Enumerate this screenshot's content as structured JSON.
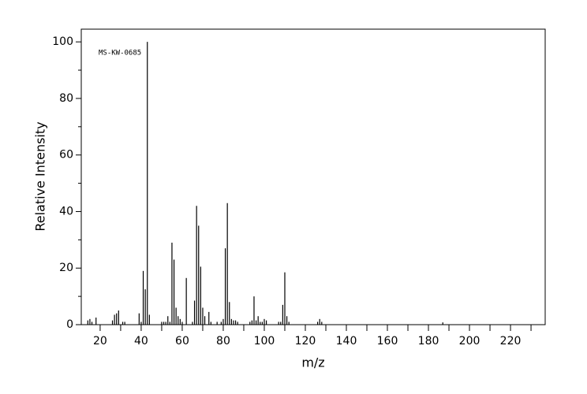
{
  "chart_data": {
    "type": "stick",
    "annotation": "MS-KW-0685",
    "xlabel": "m/z",
    "ylabel": "Relative Intensity",
    "x": [
      14,
      15,
      16,
      18,
      26,
      27,
      28,
      29,
      31,
      32,
      39,
      40,
      41,
      42,
      43,
      44,
      50,
      51,
      52,
      53,
      54,
      55,
      56,
      57,
      58,
      59,
      60,
      62,
      65,
      66,
      67,
      68,
      69,
      70,
      71,
      73,
      74,
      77,
      79,
      80,
      81,
      82,
      83,
      84,
      85,
      86,
      87,
      93,
      94,
      95,
      96,
      97,
      98,
      99,
      100,
      101,
      107,
      108,
      109,
      110,
      111,
      112,
      126,
      127,
      128,
      187
    ],
    "values": [
      1.5,
      2,
      1,
      2.5,
      1.5,
      3.5,
      4,
      5,
      1,
      1,
      4,
      1,
      19,
      12.5,
      100,
      3.5,
      1,
      1,
      1,
      3,
      1,
      29,
      23,
      6,
      3,
      2,
      1,
      16.5,
      1,
      8.5,
      42,
      35,
      20.5,
      6,
      3,
      4.5,
      1,
      1,
      1,
      2,
      27,
      43,
      8,
      2,
      1.5,
      1.5,
      1,
      1,
      1.5,
      10,
      1.5,
      3,
      1,
      1,
      2,
      1.5,
      1,
      1,
      7,
      18.5,
      3,
      1,
      1,
      2,
      1,
      0.8
    ],
    "color": "#000000",
    "xlim": [
      10.8,
      236.9
    ],
    "ylim": [
      0,
      104.5
    ],
    "xticks": [
      20,
      40,
      60,
      80,
      100,
      120,
      140,
      160,
      180,
      200,
      220
    ],
    "xminor_ticks": [
      30,
      50,
      70,
      90,
      110,
      130,
      150,
      170,
      190,
      210,
      230
    ],
    "yticks": [
      0,
      20,
      40,
      60,
      80,
      100
    ],
    "yminor_ticks": [
      10,
      30,
      50,
      70,
      90
    ]
  }
}
